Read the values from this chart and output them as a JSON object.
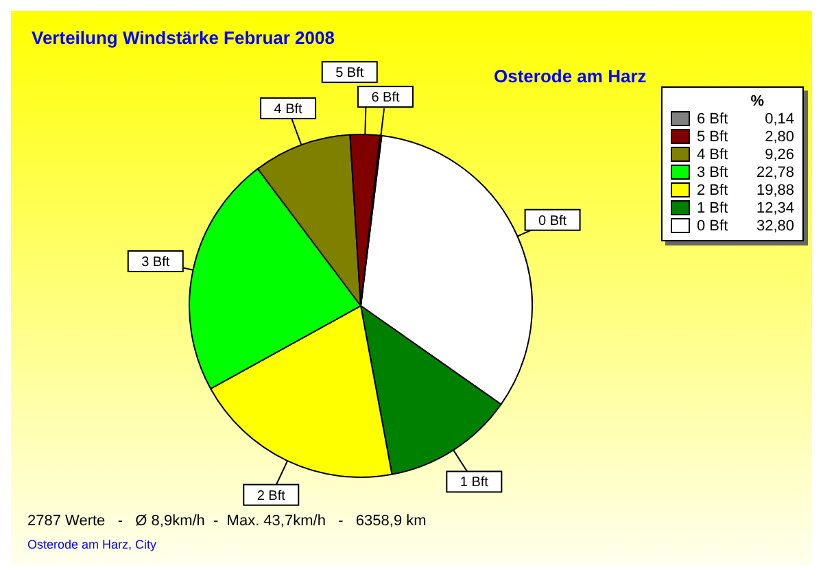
{
  "chart_data": {
    "type": "pie",
    "title": "Verteilung Windstärke  Februar 2008",
    "subtitle": "Osterode am Harz",
    "legend_title": "%",
    "legend": "top right",
    "categories": [
      "0 Bft",
      "1 Bft",
      "2 Bft",
      "3 Bft",
      "4 Bft",
      "5 Bft",
      "6 Bft"
    ],
    "values": [
      32.8,
      12.34,
      19.88,
      22.78,
      9.26,
      2.8,
      0.14
    ],
    "value_labels": [
      "32,80",
      "12,34",
      "19,88",
      "22,78",
      "9,26",
      "2,80",
      "0,14"
    ],
    "colors": [
      "#ffffff",
      "#008000",
      "#ffff00",
      "#00ff00",
      "#808000",
      "#800000",
      "#808080"
    ],
    "annotations": [
      "2787 Werte   -   Ø 8,9km/h  -  Max. 43,7km/h   -   6358,9 km",
      "Osterode am Harz, City"
    ]
  }
}
